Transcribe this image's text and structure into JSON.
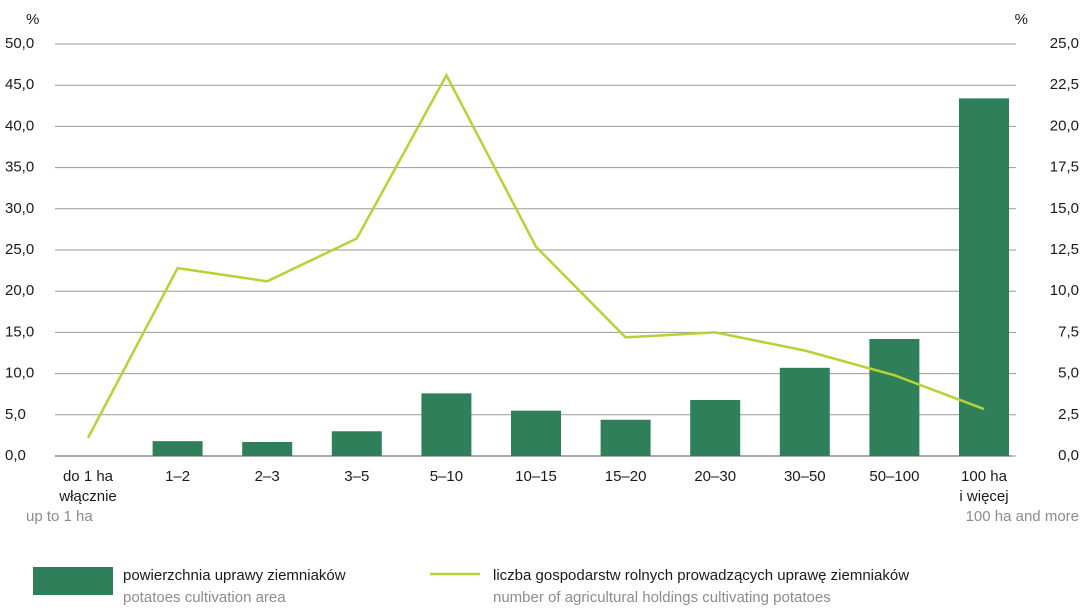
{
  "chart_data": {
    "type": "bar_line",
    "ylabel": "%",
    "y2label": "%",
    "categories": [
      [
        "do 1 ha",
        "włącznie"
      ],
      [
        "1–2"
      ],
      [
        "2–3"
      ],
      [
        "3–5"
      ],
      [
        "5–10"
      ],
      [
        "10–15"
      ],
      [
        "15–20"
      ],
      [
        "20–30"
      ],
      [
        "30–50"
      ],
      [
        "50–100"
      ],
      [
        "100 ha",
        "i więcej"
      ]
    ],
    "x_sublabels": [
      "up to 1 ha",
      null,
      null,
      null,
      null,
      null,
      null,
      null,
      null,
      null,
      "100 ha and more"
    ],
    "series": [
      {
        "name": "powierzchnia uprawy ziemniaków",
        "name_en": "potatoes cultivation area",
        "type": "bar",
        "color": "#2f7f5a",
        "axis": "y",
        "values": [
          0,
          1.8,
          1.7,
          3.0,
          7.6,
          5.5,
          4.4,
          6.8,
          10.7,
          14.2,
          43.4
        ]
      },
      {
        "name": "liczba gospodarstw rolnych prowadzących uprawę ziemniaków",
        "name_en": "number of agricultural holdings cultivating potatoes",
        "type": "line",
        "color": "#b5d334",
        "axis": "y2",
        "values": [
          1.1,
          11.4,
          10.6,
          13.2,
          23.1,
          12.7,
          7.2,
          7.5,
          6.4,
          4.9,
          2.85
        ]
      }
    ],
    "ylim": [
      0,
      50
    ],
    "yticks": [
      {
        "value": 0,
        "label": "0,0"
      },
      {
        "value": 5,
        "label": "5,0"
      },
      {
        "value": 10,
        "label": "10,0"
      },
      {
        "value": 15,
        "label": "15,0"
      },
      {
        "value": 20,
        "label": "20,0"
      },
      {
        "value": 25,
        "label": "25,0"
      },
      {
        "value": 30,
        "label": "30,0"
      },
      {
        "value": 35,
        "label": "35,0"
      },
      {
        "value": 40,
        "label": "40,0"
      },
      {
        "value": 45,
        "label": "45,0"
      },
      {
        "value": 50,
        "label": "50,0"
      }
    ],
    "y2lim": [
      0,
      25
    ],
    "y2ticks": [
      {
        "value": 0,
        "label": "0,0"
      },
      {
        "value": 2.5,
        "label": "2,5"
      },
      {
        "value": 5,
        "label": "5,0"
      },
      {
        "value": 7.5,
        "label": "7,5"
      },
      {
        "value": 10,
        "label": "10,0"
      },
      {
        "value": 12.5,
        "label": "12,5"
      },
      {
        "value": 15,
        "label": "15,0"
      },
      {
        "value": 17.5,
        "label": "17,5"
      },
      {
        "value": 20,
        "label": "20,0"
      },
      {
        "value": 22.5,
        "label": "22,5"
      },
      {
        "value": 25,
        "label": "25,0"
      }
    ],
    "grid": true
  }
}
